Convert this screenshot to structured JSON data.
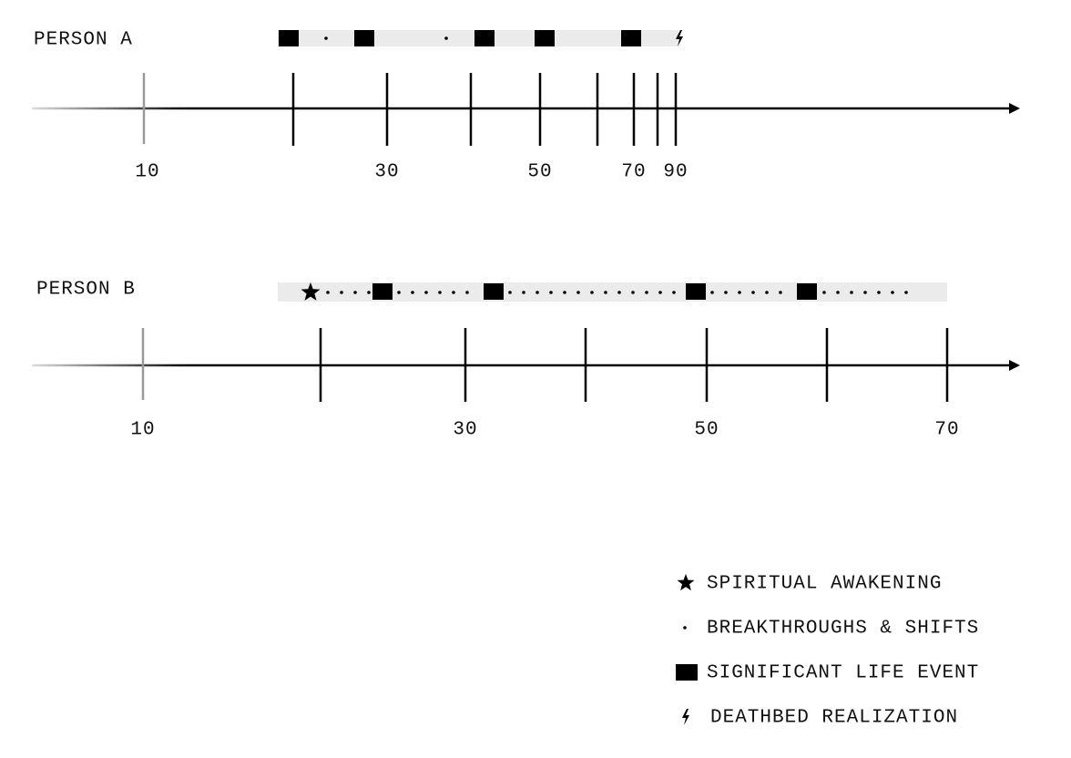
{
  "timelines": [
    {
      "label": "PERSON A",
      "tick_labels": [
        "10",
        "30",
        "50",
        "70",
        "90"
      ]
    },
    {
      "label": "PERSON B",
      "tick_labels": [
        "10",
        "30",
        "50",
        "70"
      ]
    }
  ],
  "legend": [
    {
      "label": "SPIRITUAL AWAKENING"
    },
    {
      "label": "BREAKTHROUGHS & SHIFTS"
    },
    {
      "label": "SIGNIFICANT LIFE EVENT"
    },
    {
      "label": "DEATHBED REALIZATION"
    }
  ]
}
